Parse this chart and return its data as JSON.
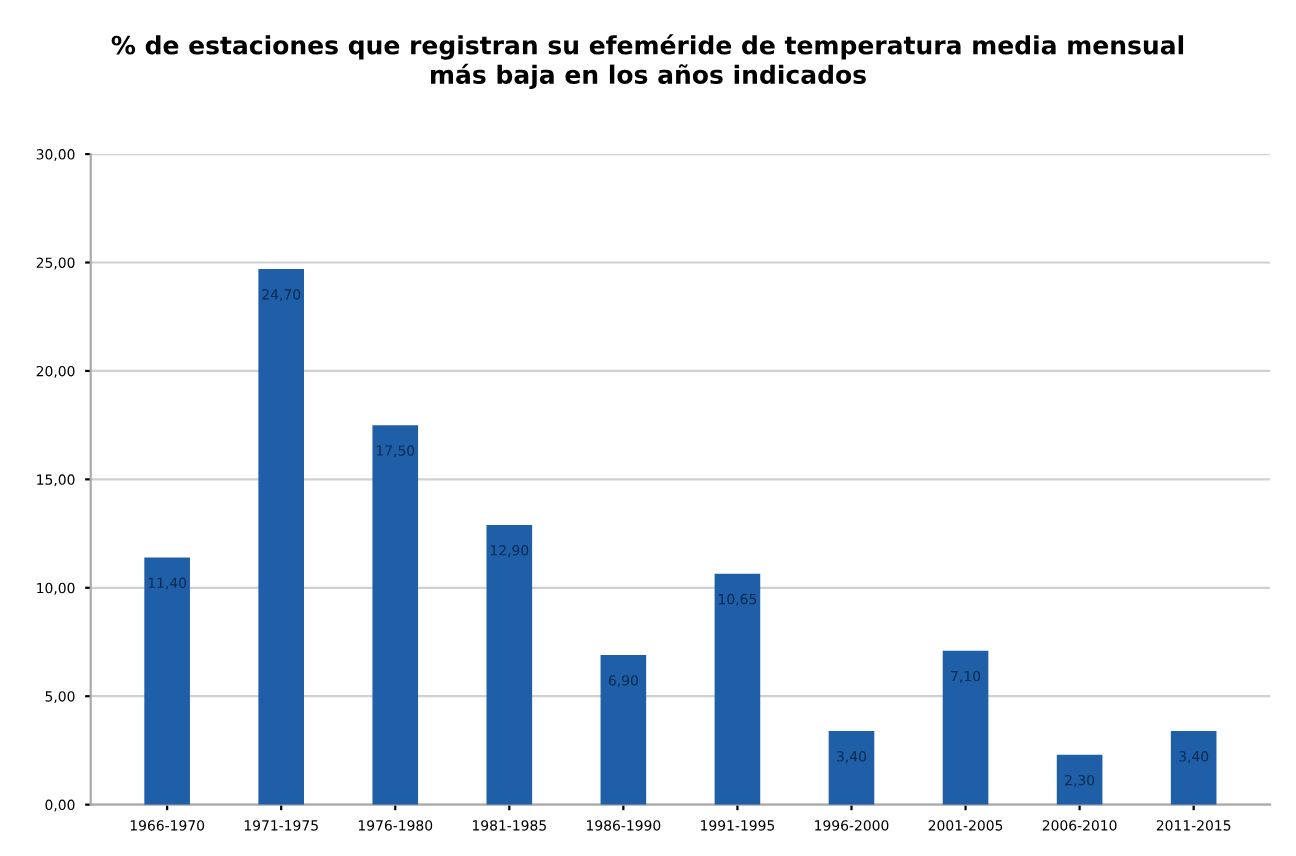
{
  "chart_data": {
    "type": "bar",
    "title": "% de estaciones que registran su efeméride de temperatura media mensual\nmás baja en los años indicados",
    "categories": [
      "1966-1970",
      "1971-1975",
      "1976-1980",
      "1981-1985",
      "1986-1990",
      "1991-1995",
      "1996-2000",
      "2001-2005",
      "2006-2010",
      "2011-2015"
    ],
    "values": [
      11.4,
      24.7,
      17.5,
      12.9,
      6.9,
      10.65,
      3.4,
      7.1,
      2.3,
      3.4
    ],
    "value_labels": [
      "11,40",
      "24,70",
      "17,50",
      "12,90",
      "6,90",
      "10,65",
      "3,40",
      "7,10",
      "2,30",
      "3,40"
    ],
    "color": "#1f5fa8",
    "ylim": [
      0,
      30
    ],
    "yticks": [
      {
        "value": 0,
        "label": "0,00"
      },
      {
        "value": 5,
        "label": "5,00"
      },
      {
        "value": 10,
        "label": "10,00"
      },
      {
        "value": 15,
        "label": "15,00"
      },
      {
        "value": 20,
        "label": "20,00"
      },
      {
        "value": 25,
        "label": "25,00"
      },
      {
        "value": 30,
        "label": "30,00"
      }
    ],
    "grid": "y"
  }
}
